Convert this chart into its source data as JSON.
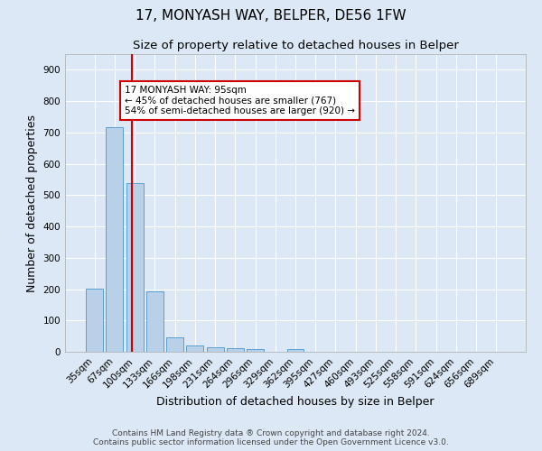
{
  "title": "17, MONYASH WAY, BELPER, DE56 1FW",
  "subtitle": "Size of property relative to detached houses in Belper",
  "xlabel": "Distribution of detached houses by size in Belper",
  "ylabel": "Number of detached properties",
  "footer": "Contains HM Land Registry data ® Crown copyright and database right 2024.\nContains public sector information licensed under the Open Government Licence v3.0.",
  "bin_labels": [
    "35sqm",
    "67sqm",
    "100sqm",
    "133sqm",
    "166sqm",
    "198sqm",
    "231sqm",
    "264sqm",
    "296sqm",
    "329sqm",
    "362sqm",
    "395sqm",
    "427sqm",
    "460sqm",
    "493sqm",
    "525sqm",
    "558sqm",
    "591sqm",
    "624sqm",
    "656sqm",
    "689sqm"
  ],
  "bar_values": [
    202,
    717,
    537,
    192,
    46,
    20,
    14,
    12,
    9,
    0,
    9,
    0,
    0,
    0,
    0,
    0,
    0,
    0,
    0,
    0,
    0
  ],
  "bar_color": "#b8d0e8",
  "bar_edge_color": "#5a9fd4",
  "vline_color": "#cc0000",
  "vline_x": 1.85,
  "annotation_text": "17 MONYASH WAY: 95sqm\n← 45% of detached houses are smaller (767)\n54% of semi-detached houses are larger (920) →",
  "annotation_box_color": "#ffffff",
  "annotation_box_edge": "#cc0000",
  "ylim": [
    0,
    950
  ],
  "yticks": [
    0,
    100,
    200,
    300,
    400,
    500,
    600,
    700,
    800,
    900
  ],
  "background_color": "#dce8f5",
  "grid_color": "#ffffff",
  "title_fontsize": 11,
  "subtitle_fontsize": 9.5,
  "axis_label_fontsize": 9,
  "tick_fontsize": 7.5,
  "footer_fontsize": 6.5,
  "annotation_fontsize": 7.5
}
